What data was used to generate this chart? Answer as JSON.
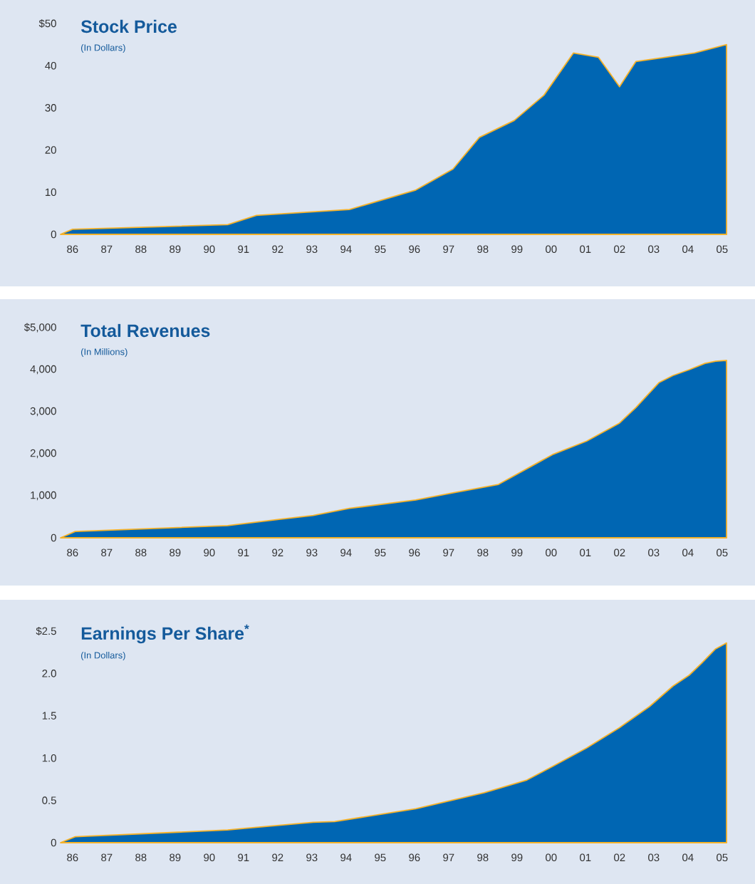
{
  "chart_data": [
    {
      "type": "area",
      "title": "Stock Price",
      "subtitle": "(In Dollars)",
      "color": "#0066b3",
      "x": [
        1985.65,
        1986.0,
        1990.54,
        1991.38,
        1994.1,
        1996.04,
        1997.13,
        1997.9,
        1998.92,
        1999.79,
        2000.65,
        2001.38,
        2002.0,
        2002.48,
        2003.35,
        2004.19,
        2005.13
      ],
      "values": [
        0,
        1.2,
        2.3,
        4.5,
        5.9,
        10.5,
        15.5,
        23,
        27,
        33,
        43,
        42,
        35,
        41,
        42,
        43,
        45
      ],
      "xlim": [
        1985.65,
        2005.15
      ],
      "ylim": [
        0,
        50
      ],
      "xticks": [
        {
          "value": 1986,
          "label": "86"
        },
        {
          "value": 1987,
          "label": "87"
        },
        {
          "value": 1988,
          "label": "88"
        },
        {
          "value": 1989,
          "label": "89"
        },
        {
          "value": 1990,
          "label": "90"
        },
        {
          "value": 1991,
          "label": "91"
        },
        {
          "value": 1992,
          "label": "92"
        },
        {
          "value": 1993,
          "label": "93"
        },
        {
          "value": 1994,
          "label": "94"
        },
        {
          "value": 1995,
          "label": "95"
        },
        {
          "value": 1996,
          "label": "96"
        },
        {
          "value": 1997,
          "label": "97"
        },
        {
          "value": 1998,
          "label": "98"
        },
        {
          "value": 1999,
          "label": "99"
        },
        {
          "value": 2000,
          "label": "00"
        },
        {
          "value": 2001,
          "label": "01"
        },
        {
          "value": 2002,
          "label": "02"
        },
        {
          "value": 2003,
          "label": "03"
        },
        {
          "value": 2004,
          "label": "04"
        },
        {
          "value": 2005,
          "label": "05"
        }
      ],
      "yticks": [
        0,
        10,
        20,
        30,
        40,
        {
          "value": 50,
          "label": "$50"
        }
      ]
    },
    {
      "type": "area",
      "title": "Total Revenues",
      "subtitle": "(In Millions)",
      "color": "#0066b3",
      "x": [
        1985.65,
        1986.08,
        1990.54,
        1992.04,
        1993.04,
        1994.1,
        1996.04,
        1997.13,
        1998.46,
        2000.04,
        2001.04,
        2002.0,
        2002.48,
        2003.15,
        2003.56,
        2004.04,
        2004.5,
        2004.81,
        2005.13
      ],
      "values": [
        0,
        150,
        290,
        440,
        530,
        700,
        900,
        1070,
        1270,
        1980,
        2300,
        2730,
        3100,
        3690,
        3860,
        4000,
        4150,
        4200,
        4220
      ],
      "xlim": [
        1985.65,
        2005.15
      ],
      "ylim": [
        0,
        5000
      ],
      "xticks": [
        {
          "value": 1986,
          "label": "86"
        },
        {
          "value": 1987,
          "label": "87"
        },
        {
          "value": 1988,
          "label": "88"
        },
        {
          "value": 1989,
          "label": "89"
        },
        {
          "value": 1990,
          "label": "90"
        },
        {
          "value": 1991,
          "label": "91"
        },
        {
          "value": 1992,
          "label": "92"
        },
        {
          "value": 1993,
          "label": "93"
        },
        {
          "value": 1994,
          "label": "94"
        },
        {
          "value": 1995,
          "label": "95"
        },
        {
          "value": 1996,
          "label": "96"
        },
        {
          "value": 1997,
          "label": "97"
        },
        {
          "value": 1998,
          "label": "98"
        },
        {
          "value": 1999,
          "label": "99"
        },
        {
          "value": 2000,
          "label": "00"
        },
        {
          "value": 2001,
          "label": "01"
        },
        {
          "value": 2002,
          "label": "02"
        },
        {
          "value": 2003,
          "label": "03"
        },
        {
          "value": 2004,
          "label": "04"
        },
        {
          "value": 2005,
          "label": "05"
        }
      ],
      "yticks": [
        0,
        {
          "value": 1000,
          "label": "1,000"
        },
        {
          "value": 2000,
          "label": "2,000"
        },
        {
          "value": 3000,
          "label": "3,000"
        },
        {
          "value": 4000,
          "label": "4,000"
        },
        {
          "value": 5000,
          "label": "$5,000"
        }
      ]
    },
    {
      "type": "area",
      "title": "Earnings Per Share$^{*}$",
      "subtitle": "(In Dollars)",
      "color": "#0066b3",
      "x": [
        1985.65,
        1986.08,
        1990.54,
        1991.04,
        1993.04,
        1993.67,
        1996.04,
        1998.04,
        1999.29,
        2000.04,
        2001.04,
        2002.0,
        2002.88,
        2003.56,
        2004.04,
        2004.4,
        2004.81,
        2005.13
      ],
      "values": [
        0,
        0.07,
        0.15,
        0.17,
        0.24,
        0.25,
        0.4,
        0.59,
        0.74,
        0.9,
        1.12,
        1.36,
        1.61,
        1.85,
        1.98,
        2.12,
        2.29,
        2.36
      ],
      "xlim": [
        1985.65,
        2005.15
      ],
      "ylim": [
        0,
        2.5
      ],
      "xticks": [
        {
          "value": 1986,
          "label": "86"
        },
        {
          "value": 1987,
          "label": "87"
        },
        {
          "value": 1988,
          "label": "88"
        },
        {
          "value": 1989,
          "label": "89"
        },
        {
          "value": 1990,
          "label": "90"
        },
        {
          "value": 1991,
          "label": "91"
        },
        {
          "value": 1992,
          "label": "92"
        },
        {
          "value": 1993,
          "label": "93"
        },
        {
          "value": 1994,
          "label": "94"
        },
        {
          "value": 1995,
          "label": "95"
        },
        {
          "value": 1996,
          "label": "96"
        },
        {
          "value": 1997,
          "label": "97"
        },
        {
          "value": 1998,
          "label": "98"
        },
        {
          "value": 1999,
          "label": "99"
        },
        {
          "value": 2000,
          "label": "00"
        },
        {
          "value": 2001,
          "label": "01"
        },
        {
          "value": 2002,
          "label": "02"
        },
        {
          "value": 2003,
          "label": "03"
        },
        {
          "value": 2004,
          "label": "04"
        },
        {
          "value": 2005,
          "label": "05"
        }
      ],
      "yticks": [
        0,
        0.5,
        {
          "value": 1.0,
          "label": "1.0"
        },
        1.5,
        {
          "value": 2.0,
          "label": "2.0"
        },
        {
          "value": 2.5,
          "label": "$2.5"
        }
      ]
    }
  ]
}
